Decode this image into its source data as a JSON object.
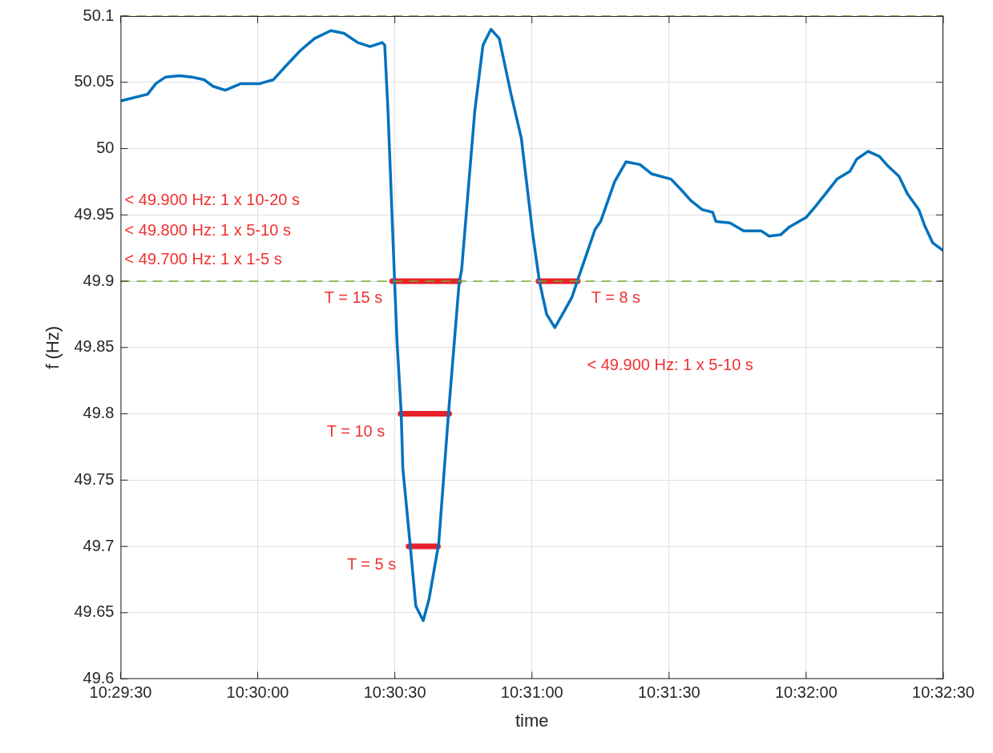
{
  "chart_data": {
    "type": "line",
    "xlabel": "time",
    "ylabel": "f (Hz)",
    "xlim": [
      10.491667,
      10.541667
    ],
    "xticks": [
      {
        "value": 10.491667,
        "label": "10:29:30"
      },
      {
        "value": 10.5,
        "label": "10:30:00"
      },
      {
        "value": 10.508333,
        "label": "10:30:30"
      },
      {
        "value": 10.516667,
        "label": "10:31:00"
      },
      {
        "value": 10.525,
        "label": "10:31:30"
      },
      {
        "value": 10.533333,
        "label": "10:32:00"
      },
      {
        "value": 10.541667,
        "label": "10:32:30"
      }
    ],
    "ylim": [
      49.6,
      50.1
    ],
    "yticks": [
      49.6,
      49.65,
      49.7,
      49.75,
      49.8,
      49.85,
      49.9,
      49.95,
      50,
      50.05,
      50.1
    ],
    "grid": true,
    "legend": false,
    "marker": "none",
    "line_style": "solid",
    "series": [
      {
        "color": "#0072bd",
        "x": [
          10.491667,
          10.49331,
          10.49381,
          10.4944,
          10.49525,
          10.49599,
          10.49674,
          10.49729,
          10.49803,
          10.49898,
          10.50012,
          10.50096,
          10.50161,
          10.5026,
          10.50345,
          10.50444,
          10.50524,
          10.50608,
          10.50683,
          10.50757,
          10.50772,
          10.50792,
          10.50817,
          10.50832,
          10.50847,
          10.50872,
          10.50882,
          10.50926,
          10.50961,
          10.51006,
          10.51041,
          10.511,
          10.5116,
          10.51225,
          10.51239,
          10.51319,
          10.51369,
          10.51418,
          10.51468,
          10.51538,
          10.51602,
          10.51672,
          10.51712,
          10.51756,
          10.51806,
          10.51861,
          10.5191,
          10.51945,
          10.5205,
          10.52084,
          10.52169,
          10.52238,
          10.52323,
          10.52393,
          10.52512,
          10.52581,
          10.52631,
          10.52701,
          10.52765,
          10.52785,
          10.5287,
          10.52954,
          10.53059,
          10.53108,
          10.53178,
          10.53232,
          10.53332,
          10.53387,
          10.53451,
          10.53521,
          10.536,
          10.5364,
          10.5371,
          10.53779,
          10.53829,
          10.53898,
          10.53948,
          10.54018,
          10.54053,
          10.54102,
          10.541667
        ],
        "values": [
          50.036,
          50.041,
          50.049,
          50.054,
          50.055,
          50.054,
          50.052,
          50.047,
          50.044,
          50.049,
          50.049,
          50.052,
          50.061,
          50.074,
          50.083,
          50.089,
          50.087,
          50.08,
          50.077,
          50.08,
          50.078,
          50.028,
          49.948,
          49.9,
          49.854,
          49.801,
          49.759,
          49.702,
          49.655,
          49.644,
          49.66,
          49.702,
          49.801,
          49.9,
          49.908,
          50.028,
          50.078,
          50.09,
          50.083,
          50.042,
          50.008,
          49.935,
          49.9,
          49.875,
          49.865,
          49.877,
          49.888,
          49.901,
          49.939,
          49.945,
          49.975,
          49.99,
          49.988,
          49.981,
          49.977,
          49.968,
          49.961,
          49.954,
          49.952,
          49.945,
          49.944,
          49.938,
          49.938,
          49.934,
          49.935,
          49.941,
          49.948,
          49.956,
          49.966,
          49.977,
          49.983,
          49.992,
          49.998,
          49.994,
          49.987,
          49.979,
          49.966,
          49.954,
          49.942,
          49.929,
          49.923
        ]
      },
      {
        "color": "#e8202a",
        "x": [
          10.50817,
          10.51225
        ],
        "values": [
          49.9,
          49.9
        ]
      },
      {
        "color": "#e8202a",
        "x": [
          10.50868,
          10.51164
        ],
        "values": [
          49.8,
          49.8
        ]
      },
      {
        "color": "#e8202a",
        "x": [
          10.50917,
          10.51096
        ],
        "values": [
          49.7,
          49.7
        ]
      },
      {
        "color": "#e8202a",
        "x": [
          10.51706,
          10.51945
        ],
        "values": [
          49.9,
          49.9
        ]
      }
    ],
    "ref_lines": [
      {
        "axis": "y",
        "value": 50.1,
        "color": "#77ac30",
        "line_style": "dashed"
      },
      {
        "axis": "y",
        "value": 49.9,
        "color": "#77ac30",
        "line_style": "dashed"
      }
    ],
    "annotations": [
      "< 49.900 Hz: 1 x 10-20 s",
      "< 49.800 Hz: 1 x 5-10 s",
      "< 49.700 Hz: 1 x 1-5 s",
      "< 49.900 Hz: 1 x 5-10 s",
      "T = 15 s",
      "T = 10 s",
      "T = 5 s",
      "T = 8 s"
    ]
  }
}
